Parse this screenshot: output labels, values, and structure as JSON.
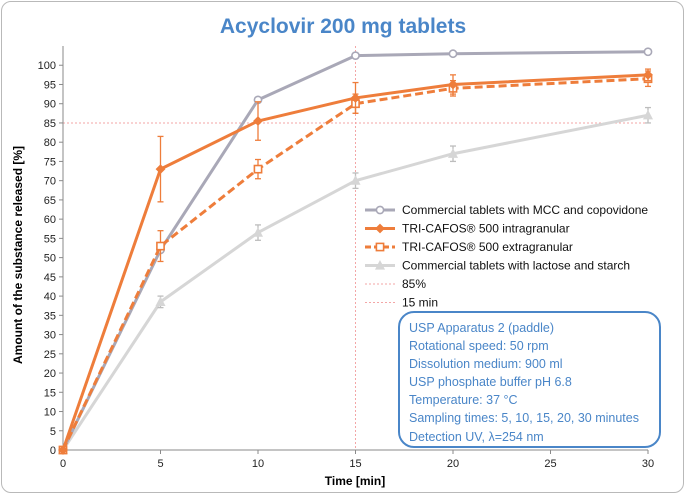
{
  "chart_data": {
    "type": "line",
    "title": "Acyclovir 200 mg tablets",
    "xlabel": "Time [min]",
    "ylabel": "Amount of the substance released [%]",
    "xlim": [
      0,
      30
    ],
    "ylim": [
      0,
      105
    ],
    "x_ticks": [
      0,
      5,
      10,
      15,
      20,
      25,
      30
    ],
    "y_ticks": [
      0,
      5,
      10,
      15,
      20,
      25,
      30,
      35,
      40,
      45,
      50,
      55,
      60,
      65,
      70,
      75,
      80,
      85,
      90,
      95,
      100
    ],
    "grid": false,
    "legend_position": "right",
    "series": [
      {
        "name": "Commercial tablets with MCC and copovidone",
        "color": "#a9a8b7",
        "line_style": "solid",
        "marker": "circle",
        "x": [
          0,
          5,
          10,
          15,
          20,
          30
        ],
        "y": [
          0,
          52,
          91,
          102.5,
          103,
          103.5
        ],
        "error": [
          0,
          0,
          0,
          0,
          0,
          0
        ]
      },
      {
        "name": "TRI-CAFOS® 500 intragranular",
        "color": "#ee7d3b",
        "line_style": "solid",
        "marker": "diamond",
        "x": [
          0,
          5,
          10,
          15,
          20,
          30
        ],
        "y": [
          0,
          73,
          85.5,
          91.5,
          95,
          97.5
        ],
        "error": [
          0,
          8.5,
          5,
          4,
          2.5,
          1.5
        ]
      },
      {
        "name": "TRI-CAFOS® 500 extragranular",
        "color": "#ee7d3b",
        "line_style": "dashed",
        "marker": "square",
        "x": [
          0,
          5,
          10,
          15,
          20,
          30
        ],
        "y": [
          0,
          53,
          73,
          90,
          94,
          96.5
        ],
        "error": [
          0,
          4,
          2.5,
          2.5,
          2,
          2
        ]
      },
      {
        "name": "Commercial tablets with lactose and starch",
        "color": "#d6d6d6",
        "line_style": "solid",
        "marker": "triangle",
        "x": [
          0,
          5,
          10,
          15,
          20,
          30
        ],
        "y": [
          0,
          38.5,
          56.5,
          70,
          77,
          87
        ],
        "error": [
          0,
          1.5,
          2,
          2,
          2,
          2
        ]
      }
    ],
    "reference_lines": [
      {
        "name": "85%",
        "axis": "y",
        "value": 85,
        "color": "#f3a6a6"
      },
      {
        "name": "15 min",
        "axis": "x",
        "value": 15,
        "color": "#f3a6a6"
      }
    ],
    "info_box": {
      "color": "#4a86c8",
      "lines": [
        "USP Apparatus 2 (paddle)",
        "Rotational speed: 50 rpm",
        "Dissolution medium: 900 ml",
        "USP phosphate buffer pH 6.8",
        "Temperature: 37 °C",
        "Sampling times: 5, 10, 15, 20, 30 minutes",
        "Detection UV, λ=254 nm"
      ]
    },
    "title_color": "#4a86c8"
  }
}
